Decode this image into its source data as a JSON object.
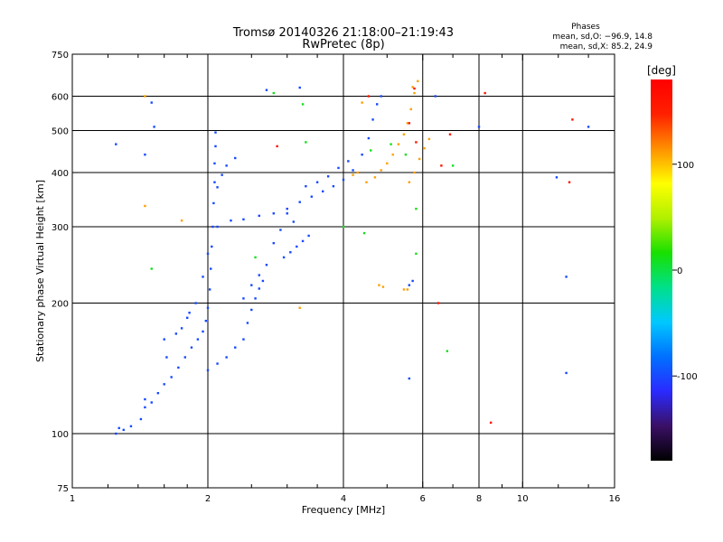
{
  "title_line1": "Tromsø 20140326 21:18:00–21:19:43",
  "title_line2": "RwPretec (8p)",
  "stats": {
    "heading": "Phases",
    "line1": "mean, sd,O: −96.9, 14.8",
    "line2": "mean, sd,X:  85.2, 24.9"
  },
  "chart_data": {
    "type": "scatter",
    "xlabel": "Frequency [MHz]",
    "ylabel": "Stationary phase Virtual Height [km]",
    "x_scale": "log",
    "y_scale": "log",
    "xlim": [
      1,
      16
    ],
    "ylim": [
      75,
      750
    ],
    "x_ticks": [
      1,
      2,
      4,
      6,
      8,
      10,
      16
    ],
    "x_tick_labels": [
      "1",
      "2",
      "4",
      "6",
      "8",
      "10",
      "16"
    ],
    "x_minor_ticks": [
      1.2,
      1.4,
      1.6,
      1.8,
      2.5,
      3,
      3.5,
      5,
      7,
      9,
      12,
      14
    ],
    "y_ticks": [
      75,
      100,
      200,
      300,
      400,
      500,
      600,
      750
    ],
    "y_tick_labels": [
      "75",
      "100",
      "200",
      "300",
      "400",
      "500",
      "600",
      "750"
    ],
    "grid": true,
    "grid_x": [
      2,
      4,
      6,
      8,
      10
    ],
    "grid_y": [
      100,
      200,
      300,
      400,
      500,
      600
    ],
    "colorbar": {
      "label": "[deg]",
      "min": -180,
      "max": 180,
      "ticks": [
        -100,
        0,
        100
      ],
      "tick_labels": [
        "-100",
        "0",
        "100"
      ],
      "stops": [
        "#000000",
        "#3a1066",
        "#2a2aff",
        "#0070ff",
        "#00c8ff",
        "#00e08a",
        "#18e000",
        "#b0f000",
        "#ffff00",
        "#ff9000",
        "#ff2000",
        "#ff0000"
      ]
    },
    "series": [
      {
        "phase_deg": -100,
        "points": [
          [
            1.25,
            100
          ],
          [
            1.27,
            103
          ],
          [
            1.3,
            102
          ],
          [
            1.35,
            104
          ],
          [
            1.42,
            108
          ],
          [
            1.45,
            115
          ],
          [
            1.5,
            118
          ],
          [
            1.55,
            124
          ],
          [
            1.6,
            130
          ],
          [
            1.66,
            135
          ],
          [
            1.72,
            142
          ],
          [
            1.78,
            150
          ],
          [
            1.84,
            158
          ],
          [
            1.9,
            165
          ],
          [
            1.95,
            172
          ],
          [
            1.98,
            182
          ],
          [
            2.0,
            195
          ],
          [
            2.02,
            215
          ],
          [
            2.03,
            240
          ],
          [
            2.04,
            270
          ],
          [
            2.05,
            300
          ],
          [
            2.06,
            340
          ],
          [
            2.07,
            380
          ],
          [
            2.07,
            420
          ],
          [
            2.08,
            460
          ],
          [
            2.08,
            495
          ],
          [
            1.62,
            150
          ],
          [
            1.7,
            170
          ],
          [
            1.8,
            185
          ],
          [
            1.88,
            200
          ],
          [
            1.95,
            230
          ],
          [
            2.0,
            260
          ],
          [
            2.1,
            300
          ],
          [
            2.25,
            310
          ],
          [
            2.4,
            312
          ],
          [
            2.6,
            318
          ],
          [
            2.8,
            322
          ],
          [
            3.0,
            330
          ],
          [
            3.2,
            342
          ],
          [
            3.4,
            352
          ],
          [
            3.6,
            362
          ],
          [
            3.8,
            372
          ],
          [
            4.0,
            385
          ],
          [
            4.2,
            405
          ],
          [
            4.4,
            440
          ],
          [
            4.55,
            480
          ],
          [
            4.65,
            530
          ],
          [
            4.75,
            575
          ],
          [
            4.85,
            600
          ],
          [
            2.95,
            255
          ],
          [
            3.05,
            262
          ],
          [
            3.15,
            270
          ],
          [
            3.25,
            278
          ],
          [
            3.35,
            286
          ],
          [
            2.4,
            205
          ],
          [
            2.5,
            220
          ],
          [
            2.6,
            232
          ],
          [
            2.7,
            245
          ],
          [
            2.8,
            275
          ],
          [
            2.9,
            295
          ],
          [
            3.0,
            322
          ],
          [
            3.1,
            308
          ],
          [
            3.3,
            372
          ],
          [
            3.5,
            380
          ],
          [
            3.7,
            392
          ],
          [
            3.9,
            410
          ],
          [
            4.1,
            425
          ],
          [
            2.7,
            620
          ],
          [
            3.2,
            628
          ],
          [
            1.25,
            465
          ],
          [
            1.45,
            440
          ],
          [
            1.5,
            580
          ],
          [
            1.52,
            510
          ],
          [
            2.1,
            370
          ],
          [
            2.15,
            395
          ],
          [
            2.2,
            415
          ],
          [
            2.3,
            432
          ],
          [
            1.45,
            120
          ],
          [
            1.6,
            165
          ],
          [
            1.75,
            175
          ],
          [
            1.82,
            190
          ],
          [
            2.0,
            140
          ],
          [
            2.1,
            145
          ],
          [
            2.2,
            150
          ],
          [
            2.3,
            158
          ],
          [
            2.4,
            165
          ],
          [
            2.45,
            180
          ],
          [
            2.5,
            193
          ],
          [
            2.55,
            205
          ],
          [
            2.6,
            216
          ],
          [
            2.65,
            225
          ],
          [
            5.6,
            220
          ],
          [
            5.7,
            225
          ],
          [
            6.4,
            600
          ],
          [
            12.5,
            230
          ],
          [
            12.5,
            138
          ],
          [
            5.6,
            134
          ],
          [
            11.9,
            390
          ],
          [
            14.0,
            510
          ],
          [
            8.0,
            510
          ]
        ]
      },
      {
        "phase_deg": 10,
        "points": [
          [
            2.8,
            610
          ],
          [
            3.25,
            575
          ],
          [
            1.5,
            240
          ],
          [
            2.55,
            255
          ],
          [
            4.45,
            290
          ],
          [
            5.8,
            260
          ],
          [
            5.8,
            330
          ],
          [
            7.0,
            415
          ],
          [
            4.0,
            300
          ],
          [
            3.3,
            470
          ],
          [
            6.8,
            155
          ],
          [
            4.6,
            450
          ],
          [
            5.1,
            465
          ],
          [
            5.5,
            440
          ]
        ]
      },
      {
        "phase_deg": 110,
        "points": [
          [
            4.5,
            380
          ],
          [
            4.7,
            390
          ],
          [
            4.85,
            405
          ],
          [
            5.0,
            420
          ],
          [
            5.15,
            440
          ],
          [
            5.3,
            465
          ],
          [
            5.45,
            490
          ],
          [
            5.55,
            520
          ],
          [
            5.65,
            560
          ],
          [
            5.75,
            610
          ],
          [
            5.85,
            650
          ],
          [
            5.6,
            380
          ],
          [
            5.75,
            400
          ],
          [
            5.9,
            430
          ],
          [
            6.05,
            455
          ],
          [
            6.2,
            478
          ],
          [
            4.8,
            220
          ],
          [
            4.9,
            218
          ],
          [
            5.45,
            215
          ],
          [
            5.55,
            215
          ],
          [
            4.3,
            400
          ],
          [
            4.2,
            395
          ],
          [
            3.2,
            195
          ],
          [
            1.45,
            335
          ],
          [
            1.45,
            600
          ],
          [
            1.75,
            310
          ],
          [
            5.7,
            630
          ],
          [
            4.4,
            580
          ]
        ]
      },
      {
        "phase_deg": 160,
        "points": [
          [
            5.6,
            520
          ],
          [
            5.8,
            470
          ],
          [
            2.85,
            460
          ],
          [
            8.25,
            610
          ],
          [
            8.5,
            106
          ],
          [
            4.55,
            600
          ],
          [
            6.6,
            415
          ],
          [
            6.9,
            490
          ],
          [
            12.7,
            380
          ],
          [
            12.9,
            530
          ],
          [
            6.5,
            200
          ],
          [
            5.75,
            625
          ]
        ]
      }
    ]
  }
}
